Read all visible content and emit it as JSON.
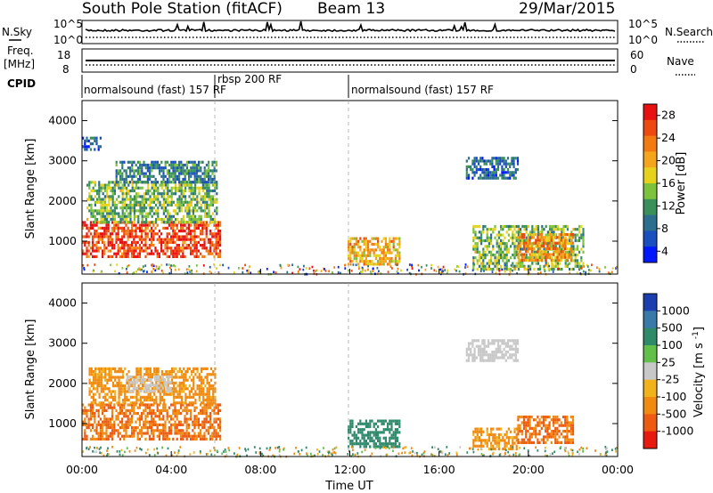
{
  "header": {
    "title": "South Pole Station (fitACF)",
    "beam": "Beam 13",
    "date": "29/Mar/2015"
  },
  "top_panels": {
    "nsky_label": "N.Sky",
    "nsearch_label": "N.Search",
    "nsky_ticks": [
      "10^5",
      "10^0"
    ],
    "nsky_right_ticks": [
      "10^5",
      "10^0"
    ],
    "freq_label_1": "Freq.",
    "freq_label_2": "[MHz]",
    "freq_ticks": [
      "18",
      "8"
    ],
    "nave_label": "Nave",
    "nave_ticks": [
      "60",
      "0"
    ],
    "cpid_label": "CPID"
  },
  "cpid_segments": [
    {
      "text": "normalsound (fast) 157 RF",
      "start_h": 0,
      "end_h": 6
    },
    {
      "text": "rbsp 200 RF",
      "start_h": 6,
      "end_h": 12
    },
    {
      "text": "normalsound (fast) 157 RF",
      "start_h": 12,
      "end_h": 24
    }
  ],
  "x_axis": {
    "label": "Time UT",
    "ticks": [
      "00:00",
      "04:00",
      "08:00",
      "12:00",
      "16:00",
      "20:00",
      "00:00"
    ]
  },
  "y_axis": {
    "label": "Slant Range [km]",
    "ticks": [
      "1000",
      "2000",
      "3000",
      "4000"
    ]
  },
  "power_colorbar": {
    "label": "Power [dB]",
    "ticks": [
      "4",
      "8",
      "12",
      "16",
      "20",
      "24",
      "28"
    ],
    "colors": [
      "#0018ff",
      "#1a4fbf",
      "#2c6e8e",
      "#3a8f5a",
      "#7cc23a",
      "#e6d21a",
      "#f5a51a",
      "#f27a10",
      "#ee4a10",
      "#e81010"
    ]
  },
  "velocity_colorbar": {
    "label": "Velocity [m s^-1]",
    "ticks": [
      "1000",
      "500",
      "100",
      "25",
      "-25",
      "-100",
      "-500",
      "-1000"
    ],
    "colors": [
      "#1b3fb0",
      "#3a7aa8",
      "#2f8a6a",
      "#62c04a",
      "#c8c8c8",
      "#f2b21a",
      "#f08a10",
      "#ee5a10",
      "#e81a10"
    ]
  },
  "chart_data": [
    {
      "type": "heatmap",
      "name": "Power",
      "xlabel": "Time UT",
      "ylabel": "Slant Range [km]",
      "xlim_hours": [
        0,
        24
      ],
      "ylim_km": [
        180,
        4500
      ],
      "colorbar_label": "Power [dB]",
      "colorbar_ticks": [
        4,
        8,
        12,
        16,
        20,
        24,
        28
      ],
      "regions": [
        {
          "t0": 0.0,
          "t1": 6.2,
          "r0": 600,
          "r1": 1500,
          "value_db": 26
        },
        {
          "t0": 0.2,
          "t1": 6.0,
          "r0": 1500,
          "r1": 2500,
          "value_db": 14
        },
        {
          "t0": 1.5,
          "t1": 6.0,
          "r0": 2500,
          "r1": 3000,
          "value_db": 10
        },
        {
          "t0": 0.0,
          "t1": 0.8,
          "r0": 3300,
          "r1": 3600,
          "value_db": 6
        },
        {
          "t0": 11.9,
          "t1": 14.2,
          "r0": 400,
          "r1": 1100,
          "value_db": 20
        },
        {
          "t0": 17.2,
          "t1": 19.5,
          "r0": 2600,
          "r1": 3100,
          "value_db": 8
        },
        {
          "t0": 17.5,
          "t1": 22.5,
          "r0": 300,
          "r1": 1400,
          "value_db": 14
        },
        {
          "t0": 19.5,
          "t1": 22.0,
          "r0": 500,
          "r1": 1200,
          "value_db": 22
        }
      ]
    },
    {
      "type": "heatmap",
      "name": "Velocity",
      "xlabel": "Time UT",
      "ylabel": "Slant Range [km]",
      "xlim_hours": [
        0,
        24
      ],
      "ylim_km": [
        180,
        4500
      ],
      "colorbar_label": "Velocity [m s^-1]",
      "colorbar_ticks": [
        1000,
        500,
        100,
        25,
        -25,
        -100,
        -500,
        -1000
      ],
      "regions": [
        {
          "t0": 0.0,
          "t1": 6.2,
          "r0": 600,
          "r1": 1500,
          "value_ms": -500
        },
        {
          "t0": 0.3,
          "t1": 6.0,
          "r0": 1500,
          "r1": 2400,
          "value_ms": -150
        },
        {
          "t0": 2.0,
          "t1": 4.0,
          "r0": 1800,
          "r1": 2200,
          "value_ms": 0
        },
        {
          "t0": 11.9,
          "t1": 14.2,
          "r0": 400,
          "r1": 1100,
          "value_ms": 300
        },
        {
          "t0": 17.2,
          "t1": 19.5,
          "r0": 2600,
          "r1": 3100,
          "value_ms": 0
        },
        {
          "t0": 19.5,
          "t1": 22.0,
          "r0": 500,
          "r1": 1200,
          "value_ms": -500
        },
        {
          "t0": 17.5,
          "t1": 19.5,
          "r0": 400,
          "r1": 900,
          "value_ms": -150
        }
      ]
    }
  ]
}
